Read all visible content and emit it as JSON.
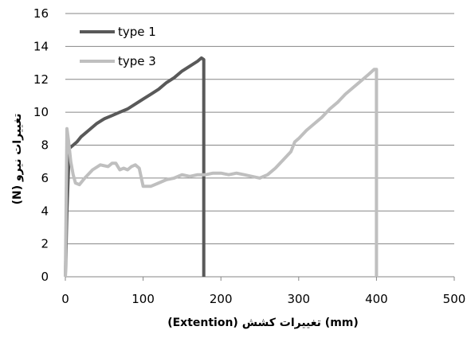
{
  "chart_data": {
    "type": "line",
    "title": "",
    "xlabel": "(Extention)  تغییرات کشش  (mm)",
    "ylabel": "(N)  تغییرات نیرو",
    "xlim": [
      0,
      500
    ],
    "ylim": [
      0,
      16
    ],
    "xticks": [
      0,
      100,
      200,
      300,
      400,
      500
    ],
    "yticks": [
      0,
      2,
      4,
      6,
      8,
      10,
      12,
      14,
      16
    ],
    "grid": {
      "x": false,
      "y": true
    },
    "legend_position": "top-left",
    "series": [
      {
        "name": "type 1",
        "color": "#595959",
        "points": [
          [
            0,
            0
          ],
          [
            2,
            4
          ],
          [
            5,
            7.8
          ],
          [
            10,
            8.0
          ],
          [
            15,
            8.2
          ],
          [
            20,
            8.5
          ],
          [
            30,
            8.9
          ],
          [
            40,
            9.3
          ],
          [
            50,
            9.6
          ],
          [
            60,
            9.8
          ],
          [
            70,
            10.0
          ],
          [
            80,
            10.2
          ],
          [
            90,
            10.5
          ],
          [
            100,
            10.8
          ],
          [
            110,
            11.1
          ],
          [
            120,
            11.4
          ],
          [
            130,
            11.8
          ],
          [
            140,
            12.1
          ],
          [
            150,
            12.5
          ],
          [
            160,
            12.8
          ],
          [
            170,
            13.1
          ],
          [
            175,
            13.3
          ],
          [
            178,
            13.2
          ],
          [
            178,
            8
          ],
          [
            178,
            0
          ]
        ]
      },
      {
        "name": "type 3",
        "color": "#bfbfbf",
        "points": [
          [
            0,
            0
          ],
          [
            2,
            9.0
          ],
          [
            4,
            8.3
          ],
          [
            7,
            7.0
          ],
          [
            10,
            6.2
          ],
          [
            13,
            5.7
          ],
          [
            18,
            5.6
          ],
          [
            25,
            6.0
          ],
          [
            35,
            6.5
          ],
          [
            45,
            6.8
          ],
          [
            55,
            6.7
          ],
          [
            60,
            6.9
          ],
          [
            65,
            6.9
          ],
          [
            70,
            6.5
          ],
          [
            75,
            6.6
          ],
          [
            80,
            6.5
          ],
          [
            85,
            6.7
          ],
          [
            90,
            6.8
          ],
          [
            95,
            6.6
          ],
          [
            100,
            5.5
          ],
          [
            110,
            5.5
          ],
          [
            120,
            5.7
          ],
          [
            130,
            5.9
          ],
          [
            140,
            6.0
          ],
          [
            150,
            6.2
          ],
          [
            160,
            6.1
          ],
          [
            170,
            6.2
          ],
          [
            180,
            6.2
          ],
          [
            190,
            6.3
          ],
          [
            200,
            6.3
          ],
          [
            210,
            6.2
          ],
          [
            220,
            6.3
          ],
          [
            230,
            6.2
          ],
          [
            240,
            6.1
          ],
          [
            250,
            6.0
          ],
          [
            260,
            6.2
          ],
          [
            270,
            6.6
          ],
          [
            280,
            7.1
          ],
          [
            290,
            7.6
          ],
          [
            295,
            8.2
          ],
          [
            300,
            8.4
          ],
          [
            310,
            8.9
          ],
          [
            320,
            9.3
          ],
          [
            330,
            9.7
          ],
          [
            340,
            10.2
          ],
          [
            350,
            10.6
          ],
          [
            360,
            11.1
          ],
          [
            370,
            11.5
          ],
          [
            380,
            11.9
          ],
          [
            390,
            12.3
          ],
          [
            397,
            12.6
          ],
          [
            400,
            12.6
          ],
          [
            400,
            6
          ],
          [
            400,
            0
          ]
        ]
      }
    ]
  }
}
